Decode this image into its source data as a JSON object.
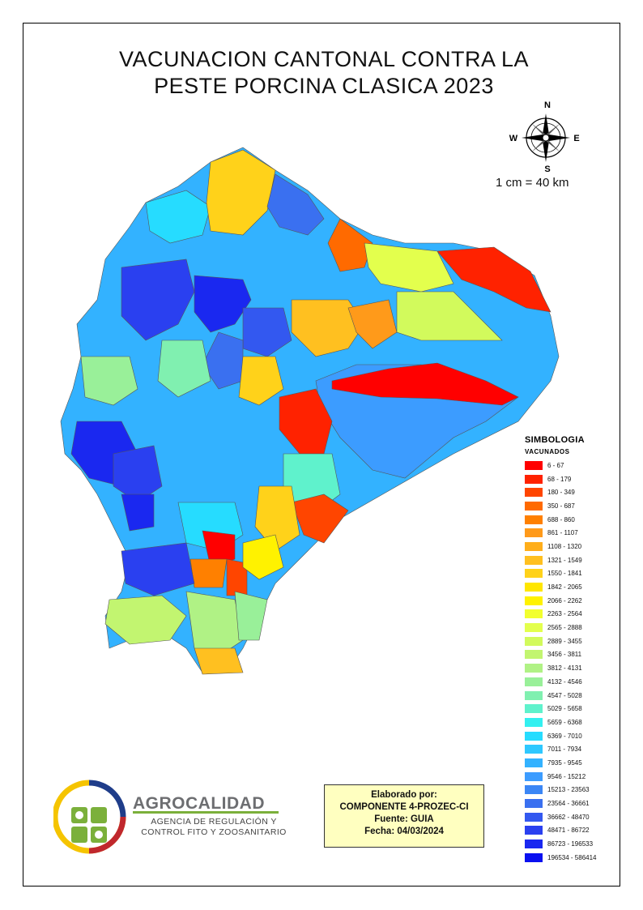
{
  "title": {
    "line1": "VACUNACION CANTONAL CONTRA LA",
    "line2": "PESTE PORCINA CLASICA 2023"
  },
  "compass": {
    "n": "N",
    "s": "S",
    "e": "E",
    "w": "W"
  },
  "scale": "1 cm = 40 km",
  "legend": {
    "heading": "SIMBOLOGIA",
    "subheading": "VACUNADOS",
    "classes": [
      {
        "label": "6 - 67",
        "color": "#ff0000"
      },
      {
        "label": "68 - 179",
        "color": "#ff2200"
      },
      {
        "label": "180 - 349",
        "color": "#ff4500"
      },
      {
        "label": "350 - 687",
        "color": "#ff6a00"
      },
      {
        "label": "688 - 860",
        "color": "#ff8000"
      },
      {
        "label": "861 - 1107",
        "color": "#ff9a1a"
      },
      {
        "label": "1108 - 1320",
        "color": "#ffae1a"
      },
      {
        "label": "1321 - 1549",
        "color": "#ffc020"
      },
      {
        "label": "1550 - 1841",
        "color": "#ffd21a"
      },
      {
        "label": "1842 - 2065",
        "color": "#ffe600"
      },
      {
        "label": "2066 - 2262",
        "color": "#fff200"
      },
      {
        "label": "2263 - 2564",
        "color": "#f2ff2e"
      },
      {
        "label": "2565 - 2888",
        "color": "#e3ff4d"
      },
      {
        "label": "2889 - 3455",
        "color": "#d2fa5c"
      },
      {
        "label": "3456 - 3811",
        "color": "#c2f570"
      },
      {
        "label": "3812 - 4131",
        "color": "#b0f285"
      },
      {
        "label": "4132 - 4546",
        "color": "#99f099"
      },
      {
        "label": "4547 - 5028",
        "color": "#80f0b0"
      },
      {
        "label": "5029 - 5658",
        "color": "#5ff2cc"
      },
      {
        "label": "5659 - 6368",
        "color": "#33f0f0"
      },
      {
        "label": "6369 - 7010",
        "color": "#26dcff"
      },
      {
        "label": "7011 - 7934",
        "color": "#2ec8ff"
      },
      {
        "label": "7935 - 9545",
        "color": "#33b2ff"
      },
      {
        "label": "9546 - 15212",
        "color": "#3c9cff"
      },
      {
        "label": "15213 - 23563",
        "color": "#3b86f5"
      },
      {
        "label": "23564 - 36661",
        "color": "#3a70f0"
      },
      {
        "label": "36662 - 48470",
        "color": "#3358f0"
      },
      {
        "label": "48471 - 86722",
        "color": "#2a40f0"
      },
      {
        "label": "86723 - 196533",
        "color": "#1a28f0"
      },
      {
        "label": "196534 - 586414",
        "color": "#0a10f0"
      }
    ]
  },
  "logo": {
    "name": "AGROCALIDAD",
    "line1": "AGENCIA DE REGULACIÓN Y",
    "line2": "CONTROL FITO Y ZOOSANITARIO"
  },
  "credits": {
    "made_by": "Elaborado por:",
    "component": "COMPONENTE 4-PROZEC-CI",
    "source": "Fuente: GUIA",
    "date": "Fecha: 04/03/2024"
  }
}
